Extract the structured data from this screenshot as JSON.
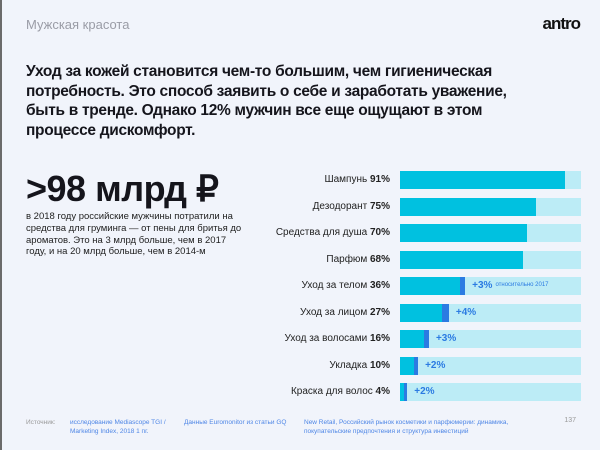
{
  "header": {
    "section": "Мужская красота",
    "logo": "antro"
  },
  "headline": "Уход за кожей становится чем-то большим, чем гигиеническая потребность. Это способ заявить о себе и заработать уважение, быть в тренде. Однако 12% мужчин все еще ощущают в этом процессе дискомфорт.",
  "stat": {
    "value": ">98 млрд ₽",
    "text": "в 2018 году российские мужчины потратили на средства для груминга — от пены для бритья до ароматов. Это на 3 млрд больше, чем в 2017 году, и на 20 млрд больше, чем в 2014-м"
  },
  "chart_data": {
    "type": "bar",
    "orientation": "horizontal",
    "xlim": [
      0,
      100
    ],
    "categories": [
      "Шампунь",
      "Дезодорант",
      "Средства для душа",
      "Парфюм",
      "Уход за телом",
      "Уход за лицом",
      "Уход за волосами",
      "Укладка",
      "Краска для волос"
    ],
    "values": [
      91,
      75,
      70,
      68,
      36,
      27,
      16,
      10,
      4
    ],
    "value_labels": [
      "91%",
      "75%",
      "70%",
      "68%",
      "36%",
      "27%",
      "16%",
      "10%",
      "4%"
    ],
    "increase_vs_2017": [
      null,
      null,
      null,
      null,
      3,
      4,
      3,
      2,
      2
    ],
    "increase_labels": [
      "",
      "",
      "",
      "",
      "+3%",
      "+4%",
      "+3%",
      "+2%",
      "+2%"
    ],
    "increase_note": "относительно 2017",
    "colors": {
      "base": "#00c1e0",
      "increase": "#2b7be2",
      "track": "#bcecf6"
    }
  },
  "footer": {
    "source_label": "Источник:",
    "sources": [
      "исследование Mediascope TGI / Marketing Index, 2018 1 пг.",
      "Данные Euromonitor из статьи GQ",
      "New Retail, Российский рынок косметики и парфюмерии: динамика, покупательские предпочтения и структура инвестиций"
    ],
    "page": "137"
  }
}
